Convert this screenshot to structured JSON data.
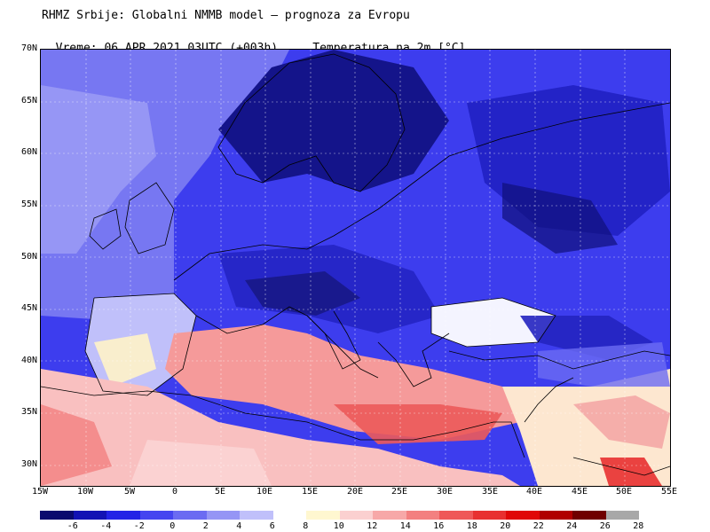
{
  "header": {
    "line1": "RHMZ Srbije: Globalni NMMB model — prognoza za Evropu",
    "line2_left": "Vreme: 06 APR 2021 03UTC (+003h)",
    "line2_right": "Temperatura na 2m [°C]"
  },
  "latitudes": [
    "70N",
    "65N",
    "60N",
    "55N",
    "50N",
    "45N",
    "40N",
    "35N",
    "30N"
  ],
  "longitudes": [
    "15W",
    "10W",
    "5W",
    "0",
    "5E",
    "10E",
    "15E",
    "20E",
    "25E",
    "30E",
    "35E",
    "40E",
    "45E",
    "50E",
    "55E"
  ],
  "colorbar": {
    "colors": [
      "#0b0b6e",
      "#1313b4",
      "#2323e6",
      "#4545f0",
      "#6b6bf2",
      "#9595f5",
      "#c0c0fa",
      "#ffffff",
      "#fff7d0",
      "#fbd0d0",
      "#f7a8a8",
      "#f38080",
      "#ef5858",
      "#e83030",
      "#e00808",
      "#b00000",
      "#700000",
      "#a8a8a8"
    ],
    "ticks": [
      "-6",
      "-4",
      "-2",
      "0",
      "2",
      "4",
      "6",
      "8",
      "10",
      "12",
      "14",
      "16",
      "18",
      "20",
      "22",
      "24",
      "26",
      "28"
    ]
  }
}
